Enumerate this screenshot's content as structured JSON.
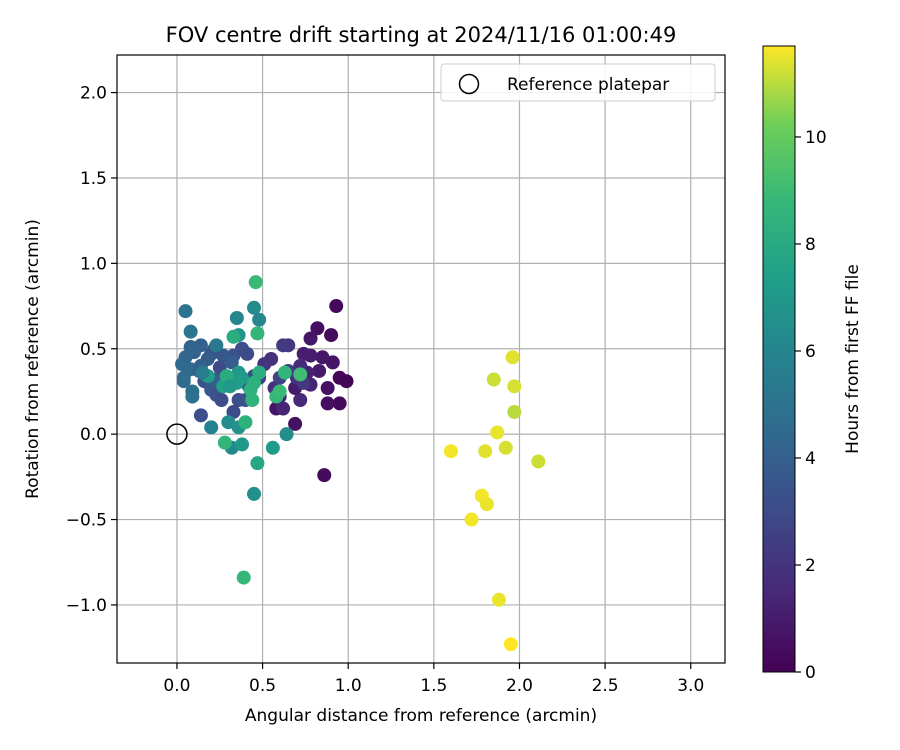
{
  "chart_data": {
    "type": "scatter",
    "title": "FOV centre drift starting at 2024/11/16 01:00:49",
    "xlabel": "Angular distance from reference (arcmin)",
    "ylabel": "Rotation from reference (arcmin)",
    "xlim": [
      -0.35,
      3.2
    ],
    "ylim": [
      -1.34,
      2.22
    ],
    "xticks": [
      0.0,
      0.5,
      1.0,
      1.5,
      2.0,
      2.5,
      3.0
    ],
    "xtick_labels": [
      "0.0",
      "0.5",
      "1.0",
      "1.5",
      "2.0",
      "2.5",
      "3.0"
    ],
    "yticks": [
      -1.0,
      -0.5,
      0.0,
      0.5,
      1.0,
      1.5,
      2.0
    ],
    "ytick_labels": [
      "−1.0",
      "−0.5",
      "0.0",
      "0.5",
      "1.0",
      "1.5",
      "2.0"
    ],
    "grid": true,
    "legend": {
      "position": "top-right",
      "entries": [
        "Reference platepar"
      ]
    },
    "reference_point": {
      "x": 0.0,
      "y": 0.0
    },
    "colorbar": {
      "label": "Hours from first FF file",
      "colormap": "viridis",
      "range": [
        0,
        11.7
      ],
      "ticks": [
        0,
        2,
        4,
        6,
        8,
        10
      ],
      "tick_labels": [
        "0",
        "2",
        "4",
        "6",
        "8",
        "10"
      ]
    },
    "points": [
      {
        "x": 0.93,
        "y": 0.75,
        "h": 0.3
      },
      {
        "x": 0.82,
        "y": 0.62,
        "h": 0.5
      },
      {
        "x": 0.9,
        "y": 0.58,
        "h": 0.4
      },
      {
        "x": 0.95,
        "y": 0.33,
        "h": 0.2
      },
      {
        "x": 0.99,
        "y": 0.31,
        "h": 0.1
      },
      {
        "x": 0.95,
        "y": 0.18,
        "h": 0.3
      },
      {
        "x": 0.88,
        "y": 0.18,
        "h": 0.5
      },
      {
        "x": 0.88,
        "y": 0.27,
        "h": 0.6
      },
      {
        "x": 0.91,
        "y": 0.42,
        "h": 0.7
      },
      {
        "x": 0.85,
        "y": 0.45,
        "h": 0.8
      },
      {
        "x": 0.83,
        "y": 0.37,
        "h": 0.9
      },
      {
        "x": 0.78,
        "y": 0.46,
        "h": 1.0
      },
      {
        "x": 0.74,
        "y": 0.47,
        "h": 1.1
      },
      {
        "x": 0.78,
        "y": 0.56,
        "h": 0.8
      },
      {
        "x": 0.76,
        "y": 0.36,
        "h": 1.2
      },
      {
        "x": 0.78,
        "y": 0.29,
        "h": 1.3
      },
      {
        "x": 0.72,
        "y": 0.2,
        "h": 1.5
      },
      {
        "x": 0.69,
        "y": 0.27,
        "h": 1.0
      },
      {
        "x": 0.69,
        "y": 0.06,
        "h": 0.6
      },
      {
        "x": 0.86,
        "y": -0.24,
        "h": 0.4
      },
      {
        "x": 0.58,
        "y": 0.15,
        "h": 0.7
      },
      {
        "x": 0.62,
        "y": 0.15,
        "h": 1.4
      },
      {
        "x": 0.6,
        "y": 0.22,
        "h": 1.6
      },
      {
        "x": 0.57,
        "y": 0.27,
        "h": 1.8
      },
      {
        "x": 0.55,
        "y": 0.44,
        "h": 1.9
      },
      {
        "x": 0.51,
        "y": 0.41,
        "h": 2.0
      },
      {
        "x": 0.65,
        "y": 0.52,
        "h": 2.1
      },
      {
        "x": 0.62,
        "y": 0.52,
        "h": 2.3
      },
      {
        "x": 0.65,
        "y": 0.37,
        "h": 2.4
      },
      {
        "x": 0.6,
        "y": 0.33,
        "h": 2.6
      },
      {
        "x": 0.72,
        "y": 0.4,
        "h": 1.7
      },
      {
        "x": 0.7,
        "y": 0.33,
        "h": 1.9
      },
      {
        "x": 0.74,
        "y": 0.3,
        "h": 2.1
      },
      {
        "x": 0.48,
        "y": 0.33,
        "h": 2.7
      },
      {
        "x": 0.45,
        "y": 0.34,
        "h": 2.9
      },
      {
        "x": 0.42,
        "y": 0.28,
        "h": 3.1
      },
      {
        "x": 0.36,
        "y": 0.2,
        "h": 3.2
      },
      {
        "x": 0.33,
        "y": 0.13,
        "h": 3.0
      },
      {
        "x": 0.4,
        "y": 0.2,
        "h": 3.3
      },
      {
        "x": 0.33,
        "y": 0.46,
        "h": 3.4
      },
      {
        "x": 0.38,
        "y": 0.5,
        "h": 3.2
      },
      {
        "x": 0.41,
        "y": 0.47,
        "h": 3.0
      },
      {
        "x": 0.27,
        "y": 0.46,
        "h": 3.6
      },
      {
        "x": 0.22,
        "y": 0.5,
        "h": 3.7
      },
      {
        "x": 0.2,
        "y": 0.47,
        "h": 3.5
      },
      {
        "x": 0.18,
        "y": 0.44,
        "h": 3.8
      },
      {
        "x": 0.14,
        "y": 0.52,
        "h": 4.0
      },
      {
        "x": 0.1,
        "y": 0.48,
        "h": 4.1
      },
      {
        "x": 0.08,
        "y": 0.51,
        "h": 4.2
      },
      {
        "x": 0.05,
        "y": 0.45,
        "h": 4.3
      },
      {
        "x": 0.03,
        "y": 0.41,
        "h": 4.4
      },
      {
        "x": 0.08,
        "y": 0.38,
        "h": 4.5
      },
      {
        "x": 0.04,
        "y": 0.33,
        "h": 4.6
      },
      {
        "x": 0.04,
        "y": 0.31,
        "h": 4.7
      },
      {
        "x": 0.09,
        "y": 0.25,
        "h": 4.8
      },
      {
        "x": 0.09,
        "y": 0.22,
        "h": 4.9
      },
      {
        "x": 0.14,
        "y": 0.4,
        "h": 3.9
      },
      {
        "x": 0.13,
        "y": 0.37,
        "h": 4.0
      },
      {
        "x": 0.16,
        "y": 0.31,
        "h": 3.3
      },
      {
        "x": 0.2,
        "y": 0.26,
        "h": 3.6
      },
      {
        "x": 0.23,
        "y": 0.23,
        "h": 3.4
      },
      {
        "x": 0.26,
        "y": 0.2,
        "h": 3.1
      },
      {
        "x": 0.27,
        "y": 0.32,
        "h": 3.8
      },
      {
        "x": 0.23,
        "y": 0.32,
        "h": 4.0
      },
      {
        "x": 0.14,
        "y": 0.11,
        "h": 3.2
      },
      {
        "x": 0.25,
        "y": 0.39,
        "h": 3.0
      },
      {
        "x": 0.3,
        "y": 0.3,
        "h": 3.5
      },
      {
        "x": 0.32,
        "y": 0.42,
        "h": 3.9
      },
      {
        "x": 0.05,
        "y": 0.72,
        "h": 5.0
      },
      {
        "x": 0.08,
        "y": 0.6,
        "h": 5.2
      },
      {
        "x": 0.35,
        "y": 0.68,
        "h": 6.0
      },
      {
        "x": 0.45,
        "y": 0.74,
        "h": 6.3
      },
      {
        "x": 0.48,
        "y": 0.67,
        "h": 6.1
      },
      {
        "x": 0.36,
        "y": 0.58,
        "h": 6.8
      },
      {
        "x": 0.33,
        "y": 0.57,
        "h": 8.2
      },
      {
        "x": 0.47,
        "y": 0.59,
        "h": 8.6
      },
      {
        "x": 0.46,
        "y": 0.89,
        "h": 8.9
      },
      {
        "x": 0.2,
        "y": 0.04,
        "h": 5.8
      },
      {
        "x": 0.3,
        "y": 0.07,
        "h": 6.4
      },
      {
        "x": 0.36,
        "y": 0.04,
        "h": 6.7
      },
      {
        "x": 0.36,
        "y": 0.36,
        "h": 6.9
      },
      {
        "x": 0.38,
        "y": 0.33,
        "h": 7.1
      },
      {
        "x": 0.35,
        "y": 0.3,
        "h": 7.3
      },
      {
        "x": 0.32,
        "y": -0.08,
        "h": 6.2
      },
      {
        "x": 0.38,
        "y": -0.06,
        "h": 7.0
      },
      {
        "x": 0.28,
        "y": -0.05,
        "h": 8.6
      },
      {
        "x": 0.56,
        "y": -0.08,
        "h": 7.2
      },
      {
        "x": 0.64,
        "y": 0.0,
        "h": 6.5
      },
      {
        "x": 0.47,
        "y": -0.17,
        "h": 7.8
      },
      {
        "x": 0.45,
        "y": -0.35,
        "h": 6.6
      },
      {
        "x": 0.39,
        "y": -0.84,
        "h": 8.7
      },
      {
        "x": 0.44,
        "y": 0.2,
        "h": 8.5
      },
      {
        "x": 0.43,
        "y": 0.26,
        "h": 8.4
      },
      {
        "x": 0.45,
        "y": 0.3,
        "h": 8.3
      },
      {
        "x": 0.48,
        "y": 0.36,
        "h": 8.2
      },
      {
        "x": 0.58,
        "y": 0.22,
        "h": 8.7
      },
      {
        "x": 0.6,
        "y": 0.25,
        "h": 8.9
      },
      {
        "x": 0.63,
        "y": 0.36,
        "h": 8.6
      },
      {
        "x": 0.72,
        "y": 0.35,
        "h": 9.0
      },
      {
        "x": 0.4,
        "y": 0.07,
        "h": 8.4
      },
      {
        "x": 0.27,
        "y": 0.28,
        "h": 7.5
      },
      {
        "x": 0.29,
        "y": 0.34,
        "h": 8.1
      },
      {
        "x": 0.31,
        "y": 0.28,
        "h": 7.0
      },
      {
        "x": 0.18,
        "y": 0.34,
        "h": 7.4
      },
      {
        "x": 0.15,
        "y": 0.36,
        "h": 5.5
      },
      {
        "x": 0.23,
        "y": 0.52,
        "h": 5.3
      },
      {
        "x": 1.96,
        "y": 0.45,
        "h": 11.4
      },
      {
        "x": 1.85,
        "y": 0.32,
        "h": 11.2
      },
      {
        "x": 1.97,
        "y": 0.28,
        "h": 11.3
      },
      {
        "x": 1.97,
        "y": 0.13,
        "h": 11.0
      },
      {
        "x": 1.87,
        "y": 0.01,
        "h": 11.5
      },
      {
        "x": 1.6,
        "y": -0.1,
        "h": 11.6
      },
      {
        "x": 1.8,
        "y": -0.1,
        "h": 11.4
      },
      {
        "x": 1.92,
        "y": -0.08,
        "h": 11.3
      },
      {
        "x": 2.11,
        "y": -0.16,
        "h": 11.2
      },
      {
        "x": 1.78,
        "y": -0.36,
        "h": 11.6
      },
      {
        "x": 1.81,
        "y": -0.41,
        "h": 11.5
      },
      {
        "x": 1.72,
        "y": -0.5,
        "h": 11.6
      },
      {
        "x": 1.88,
        "y": -0.97,
        "h": 11.5
      },
      {
        "x": 1.95,
        "y": -1.23,
        "h": 11.7
      }
    ]
  }
}
